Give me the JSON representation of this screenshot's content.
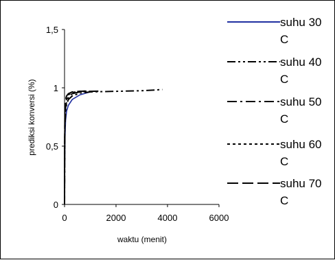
{
  "chart_data": {
    "type": "line",
    "xlabel": "waktu (menit)",
    "ylabel": "prediksi konversi (%)",
    "xlim": [
      0,
      6000
    ],
    "ylim": [
      0,
      1.5
    ],
    "x_ticks": [
      0,
      2000,
      4000,
      6000
    ],
    "y_ticks": [
      0,
      0.5,
      1,
      1.5
    ],
    "x_tick_labels": [
      "0",
      "2000",
      "4000",
      "6000"
    ],
    "y_tick_labels": [
      "0",
      "0,5",
      "1",
      "1,5"
    ],
    "grid": false,
    "legend_position": "right",
    "series": [
      {
        "name": "suhu 30 C",
        "color": "#1f2fa0",
        "dash": "solid",
        "points": [
          [
            0,
            0
          ],
          [
            5,
            0.3
          ],
          [
            15,
            0.55
          ],
          [
            40,
            0.72
          ],
          [
            80,
            0.8
          ],
          [
            150,
            0.85
          ],
          [
            300,
            0.9
          ],
          [
            600,
            0.94
          ],
          [
            1000,
            0.965
          ]
        ]
      },
      {
        "name": "suhu 40 C",
        "color": "#000000",
        "dash": "dash-dot-dot",
        "points": [
          [
            0,
            0
          ],
          [
            5,
            0.4
          ],
          [
            15,
            0.65
          ],
          [
            40,
            0.8
          ],
          [
            80,
            0.86
          ],
          [
            150,
            0.9
          ],
          [
            300,
            0.93
          ],
          [
            600,
            0.955
          ],
          [
            1000,
            0.965
          ],
          [
            2000,
            0.97
          ],
          [
            3000,
            0.975
          ],
          [
            3800,
            0.985
          ]
        ]
      },
      {
        "name": "suhu 50 C",
        "color": "#000000",
        "dash": "dash-dot",
        "points": [
          [
            0,
            0
          ],
          [
            5,
            0.45
          ],
          [
            15,
            0.7
          ],
          [
            40,
            0.83
          ],
          [
            80,
            0.88
          ],
          [
            150,
            0.92
          ],
          [
            300,
            0.95
          ],
          [
            600,
            0.965
          ],
          [
            1000,
            0.97
          ],
          [
            1400,
            0.972
          ]
        ]
      },
      {
        "name": "suhu 60 C",
        "color": "#000000",
        "dash": "dotted",
        "points": [
          [
            0,
            0
          ],
          [
            5,
            0.5
          ],
          [
            15,
            0.75
          ],
          [
            40,
            0.86
          ],
          [
            80,
            0.91
          ],
          [
            150,
            0.94
          ],
          [
            300,
            0.96
          ],
          [
            600,
            0.97
          ],
          [
            900,
            0.972
          ]
        ]
      },
      {
        "name": "suhu 70 C",
        "color": "#000000",
        "dash": "long-dash",
        "points": [
          [
            0,
            0
          ],
          [
            5,
            0.55
          ],
          [
            15,
            0.8
          ],
          [
            40,
            0.9
          ],
          [
            80,
            0.93
          ],
          [
            150,
            0.95
          ],
          [
            300,
            0.965
          ],
          [
            600,
            0.97
          ],
          [
            800,
            0.972
          ]
        ]
      }
    ]
  },
  "legend": [
    {
      "line1": "suhu 30",
      "line2": "C"
    },
    {
      "line1": "suhu 40",
      "line2": "C"
    },
    {
      "line1": "suhu 50",
      "line2": "C"
    },
    {
      "line1": "suhu 60",
      "line2": "C"
    },
    {
      "line1": "suhu 70",
      "line2": "C"
    }
  ]
}
